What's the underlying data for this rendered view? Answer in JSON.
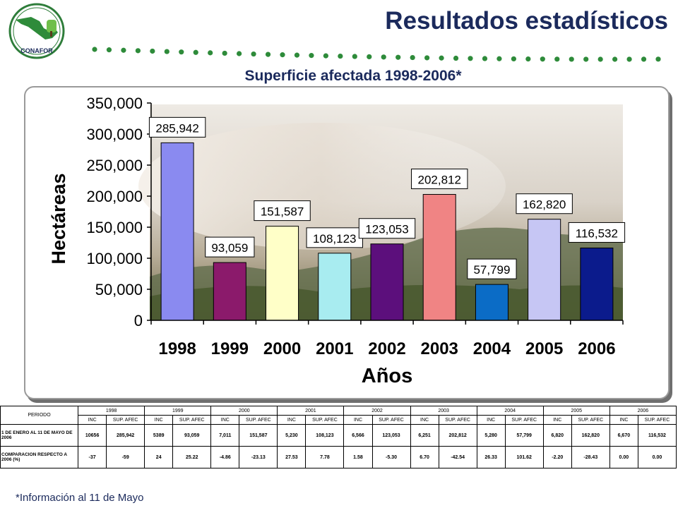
{
  "header": {
    "logo_text": "CONAFOR",
    "title": "Resultados estadísticos",
    "subtitle": "Superficie afectada 1998-2006*"
  },
  "colors": {
    "title": "#1b2a5c",
    "dots": "#2e8b3a"
  },
  "chart_data": {
    "type": "bar",
    "categories": [
      "1998",
      "1999",
      "2000",
      "2001",
      "2002",
      "2003",
      "2004",
      "2005",
      "2006"
    ],
    "values": [
      285942,
      93059,
      151587,
      108123,
      123053,
      202812,
      57799,
      162820,
      116532
    ],
    "value_labels": [
      "285,942",
      "93,059",
      "151,587",
      "108,123",
      "123,053",
      "202,812",
      "57,799",
      "162,820",
      "116,532"
    ],
    "bar_colors": [
      "#8a8af0",
      "#8b1a6b",
      "#ffffc8",
      "#a8ecf0",
      "#5c0f7c",
      "#f08484",
      "#0b6cc6",
      "#c6c6f4",
      "#0b1b8c"
    ],
    "ylabel": "Hectáreas",
    "xlabel": "Años",
    "ylim": [
      0,
      350000
    ],
    "yticks": [
      0,
      50000,
      100000,
      150000,
      200000,
      250000,
      300000,
      350000
    ],
    "ytick_labels": [
      "0",
      "50,000",
      "100,000",
      "150,000",
      "200,000",
      "250,000",
      "300,000",
      "350,000"
    ],
    "grid": false,
    "background": "photo-forest-smoke"
  },
  "table": {
    "period_label": "PERIODO",
    "years": [
      "1998",
      "1999",
      "2000",
      "2001",
      "2002",
      "2003",
      "2004",
      "2005",
      "2006"
    ],
    "col_headers": [
      [
        "INC",
        "SUP. AFEC"
      ],
      [
        "INC",
        "SUP. AFEC"
      ],
      [
        "INC",
        "SUP. AFEC"
      ],
      [
        "INC",
        "SUP. AFEC"
      ],
      [
        "INC",
        "SUP. AFEC"
      ],
      [
        "INC",
        "SUP. AFEC"
      ],
      [
        "INC",
        "SUP. AFEC"
      ],
      [
        "INC",
        "SUP. AFEC"
      ],
      [
        "INC",
        "SUP. AFEC"
      ]
    ],
    "rows": [
      {
        "label": "1 DE ENERO AL 11 DE MAYO DE 2006",
        "values": [
          "10656",
          "285,942",
          "5389",
          "93,059",
          "7,011",
          "151,587",
          "5,230",
          "108,123",
          "6,566",
          "123,053",
          "6,251",
          "202,812",
          "5,280",
          "57,799",
          "6,820",
          "162,820",
          "6,670",
          "116,532"
        ]
      },
      {
        "label": "COMPARACION RESPECTO A 2006 (%)",
        "values": [
          "-37",
          "-59",
          "24",
          "25.22",
          "-4.86",
          "-23.13",
          "27.53",
          "7.78",
          "1.58",
          "-5.30",
          "6.70",
          "-42.54",
          "26.33",
          "101.62",
          "-2.20",
          "-28.43",
          "0.00",
          "0.00"
        ]
      }
    ]
  },
  "footnote": "*Información al 11 de Mayo"
}
